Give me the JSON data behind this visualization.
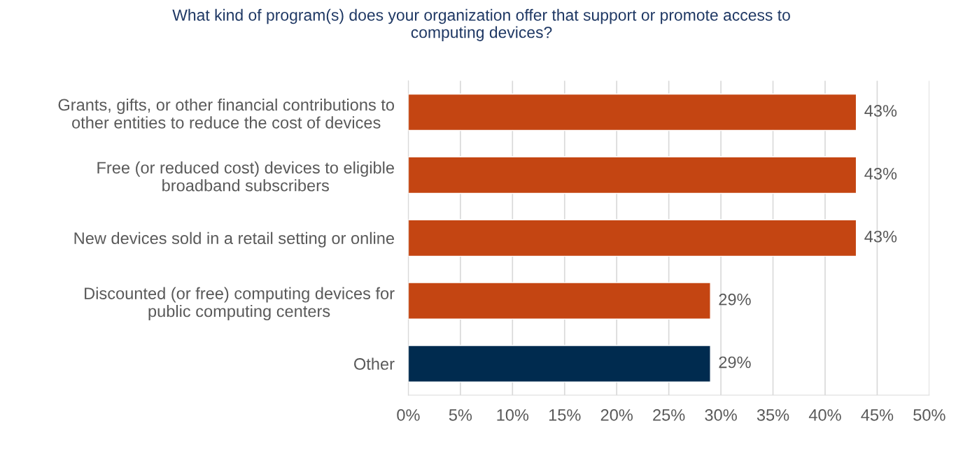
{
  "chart_data": {
    "type": "bar",
    "orientation": "horizontal",
    "title": "What kind of program(s) does your organization offer that support or promote access to\ncomputing devices?",
    "categories": [
      "Grants, gifts, or other financial contributions to\nother entities to reduce the cost of devices",
      "Free (or reduced cost) devices to eligible\nbroadband subscribers",
      "New devices sold in a retail setting or online",
      "Discounted (or free) computing devices for\npublic computing centers",
      "Other"
    ],
    "values": [
      43,
      43,
      43,
      29,
      29
    ],
    "colors": [
      "#c44512",
      "#c44512",
      "#c44512",
      "#c44512",
      "#002b4f"
    ],
    "value_labels": [
      "43%",
      "43%",
      "43%",
      "29%",
      "29%"
    ],
    "xlim": [
      0,
      50
    ],
    "xticks": [
      {
        "value": 0,
        "label": "0%"
      },
      {
        "value": 5,
        "label": "5%"
      },
      {
        "value": 10,
        "label": "10%"
      },
      {
        "value": 15,
        "label": "15%"
      },
      {
        "value": 20,
        "label": "20%"
      },
      {
        "value": 25,
        "label": "25%"
      },
      {
        "value": 30,
        "label": "30%"
      },
      {
        "value": 35,
        "label": "35%"
      },
      {
        "value": 40,
        "label": "40%"
      },
      {
        "value": 45,
        "label": "45%"
      },
      {
        "value": 50,
        "label": "50%"
      }
    ],
    "grid": "x",
    "legend": false
  }
}
